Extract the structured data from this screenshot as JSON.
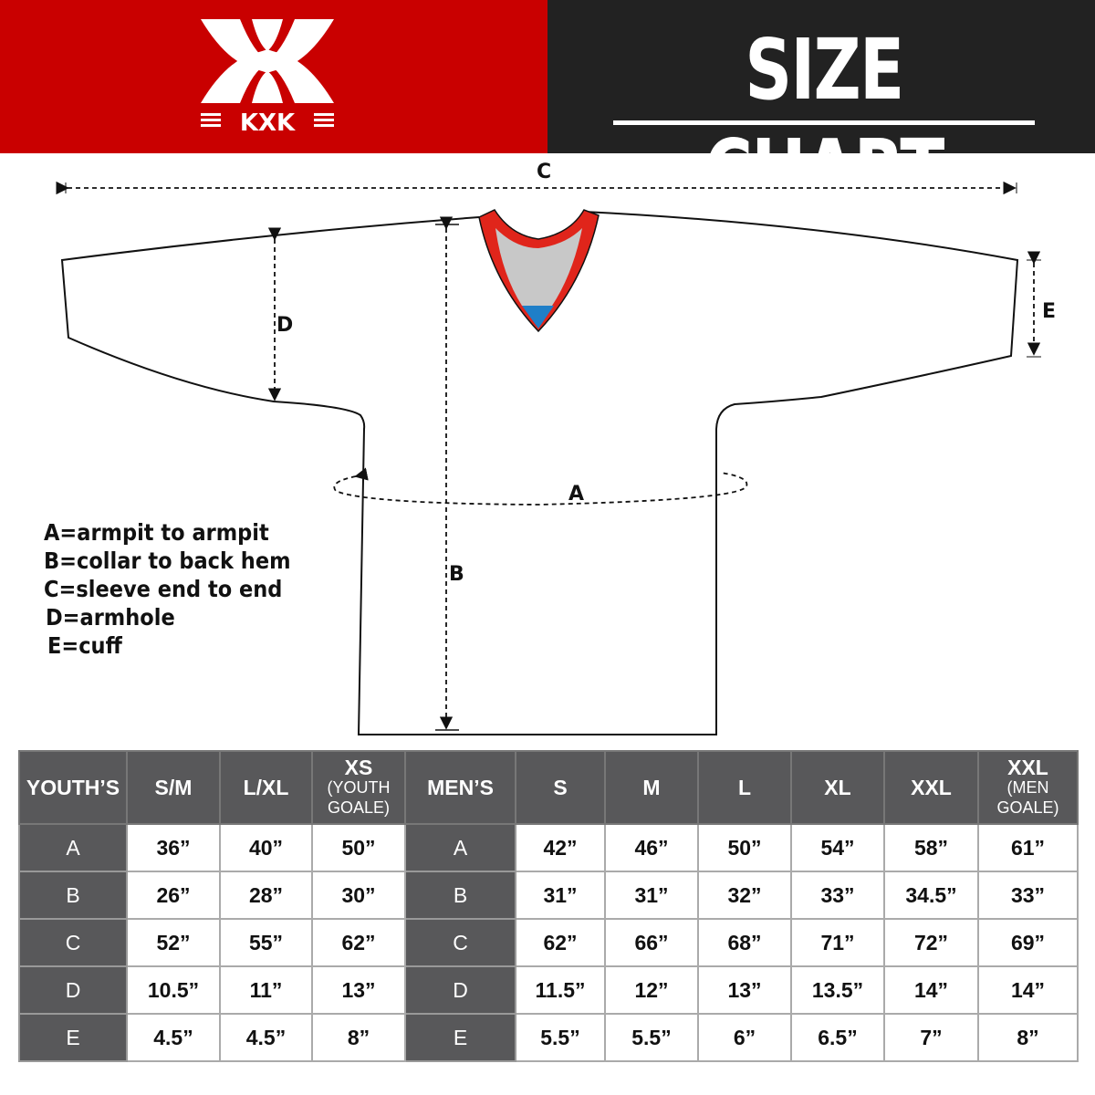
{
  "brand": {
    "logo_text": "KXK",
    "color": "#c90000"
  },
  "header": {
    "title": "SIZE CHART"
  },
  "diagram": {
    "labels": {
      "a": "A",
      "b": "B",
      "c": "C",
      "d": "D",
      "e": "E"
    },
    "legend": [
      "A=armpit to armpit",
      "B=collar to back hem",
      "C=sleeve end to end",
      "D=armhole",
      "E=cuff"
    ],
    "collar_colors": {
      "trim": "#e0251b",
      "inner": "#c8c8c8",
      "accent": "#1f7fc8"
    }
  },
  "table": {
    "headers": [
      {
        "main": "YOUTH’S"
      },
      {
        "main": "S/M"
      },
      {
        "main": "L/XL"
      },
      {
        "main": "XS",
        "sub": "(YOUTH GOALE)"
      },
      {
        "main": "MEN’S"
      },
      {
        "main": "S"
      },
      {
        "main": "M"
      },
      {
        "main": "L"
      },
      {
        "main": "XL"
      },
      {
        "main": "XXL"
      },
      {
        "main": "XXL",
        "sub": "(MEN GOALE)"
      }
    ],
    "rows": [
      {
        "youth_label": "A",
        "youth": [
          "36”",
          "40”",
          "50”"
        ],
        "men_label": "A",
        "men": [
          "42”",
          "46”",
          "50”",
          "54”",
          "58”",
          "61”"
        ]
      },
      {
        "youth_label": "B",
        "youth": [
          "26”",
          "28”",
          "30”"
        ],
        "men_label": "B",
        "men": [
          "31”",
          "31”",
          "32”",
          "33”",
          "34.5”",
          "33”"
        ]
      },
      {
        "youth_label": "C",
        "youth": [
          "52”",
          "55”",
          "62”"
        ],
        "men_label": "C",
        "men": [
          "62”",
          "66”",
          "68”",
          "71”",
          "72”",
          "69”"
        ]
      },
      {
        "youth_label": "D",
        "youth": [
          "10.5”",
          "11”",
          "13”"
        ],
        "men_label": "D",
        "men": [
          "11.5”",
          "12”",
          "13”",
          "13.5”",
          "14”",
          "14”"
        ]
      },
      {
        "youth_label": "E",
        "youth": [
          "4.5”",
          "4.5”",
          "8”"
        ],
        "men_label": "E",
        "men": [
          "5.5”",
          "5.5”",
          "6”",
          "6.5”",
          "7”",
          "8”"
        ]
      }
    ]
  }
}
